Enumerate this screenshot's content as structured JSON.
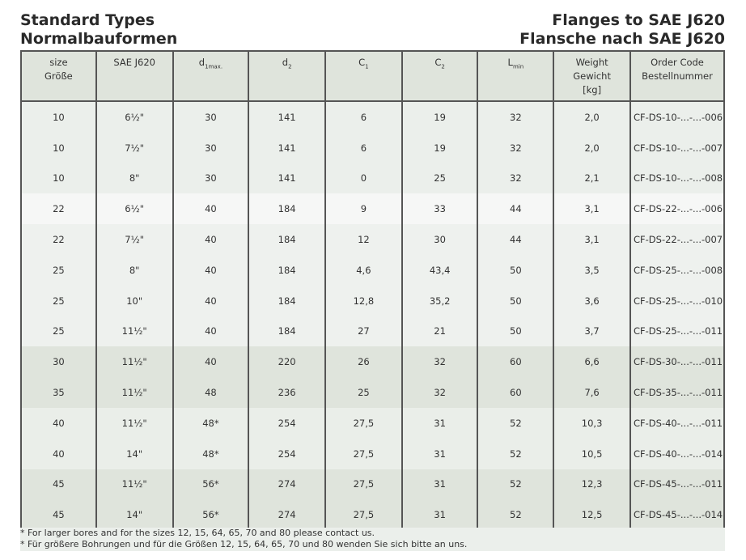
{
  "title_left": [
    "Standard Types",
    "Normalbauformen"
  ],
  "title_right": [
    "Flanges to SAE J620",
    "Flansche nach SAE J620"
  ],
  "headers": {
    "size": [
      "size",
      "Größe"
    ],
    "sae": "SAE J620",
    "d1": {
      "main": "d",
      "sub": "1max."
    },
    "d2": {
      "main": "d",
      "sub": "2"
    },
    "c1": {
      "main": "C",
      "sub": "1"
    },
    "c2": {
      "main": "C",
      "sub": "2"
    },
    "lmin": {
      "main": "L",
      "sub": "min"
    },
    "weight": [
      "Weight",
      "Gewicht",
      "[kg]"
    ],
    "order": [
      "Order Code",
      "Bestellnummer"
    ]
  },
  "rows": [
    [
      "10",
      "6½\"",
      "30",
      "141",
      "6",
      "19",
      "32",
      "2,0",
      "CF-DS-10-...-...-006"
    ],
    [
      "10",
      "7½\"",
      "30",
      "141",
      "6",
      "19",
      "32",
      "2,0",
      "CF-DS-10-...-...-007"
    ],
    [
      "10",
      "8\"",
      "30",
      "141",
      "0",
      "25",
      "32",
      "2,1",
      "CF-DS-10-...-...-008"
    ],
    [
      "22",
      "6½\"",
      "40",
      "184",
      "9",
      "33",
      "44",
      "3,1",
      "CF-DS-22-...-...-006"
    ],
    [
      "22",
      "7½\"",
      "40",
      "184",
      "12",
      "30",
      "44",
      "3,1",
      "CF-DS-22-...-...-007"
    ],
    [
      "25",
      "8\"",
      "40",
      "184",
      "4,6",
      "43,4",
      "50",
      "3,5",
      "CF-DS-25-...-...-008"
    ],
    [
      "25",
      "10\"",
      "40",
      "184",
      "12,8",
      "35,2",
      "50",
      "3,6",
      "CF-DS-25-...-...-010"
    ],
    [
      "25",
      "11½\"",
      "40",
      "184",
      "27",
      "21",
      "50",
      "3,7",
      "CF-DS-25-...-...-011"
    ],
    [
      "30",
      "11½\"",
      "40",
      "220",
      "26",
      "32",
      "60",
      "6,6",
      "CF-DS-30-...-...-011"
    ],
    [
      "35",
      "11½\"",
      "48",
      "236",
      "25",
      "32",
      "60",
      "7,6",
      "CF-DS-35-...-...-011"
    ],
    [
      "40",
      "11½\"",
      "48*",
      "254",
      "27,5",
      "31",
      "52",
      "10,3",
      "CF-DS-40-...-...-011"
    ],
    [
      "40",
      "14\"",
      "48*",
      "254",
      "27,5",
      "31",
      "52",
      "10,5",
      "CF-DS-40-...-...-014"
    ],
    [
      "45",
      "11½\"",
      "56*",
      "274",
      "27,5",
      "31",
      "52",
      "12,3",
      "CF-DS-45-...-...-011"
    ],
    [
      "45",
      "14\"",
      "56*",
      "274",
      "27,5",
      "31",
      "52",
      "12,5",
      "CF-DS-45-...-...-014"
    ]
  ],
  "footnotes": [
    "* For larger bores and for the sizes 12, 15, 64, 65, 70 and 80 please contact us.",
    "* Für größere Bohrungen und für die Größen 12, 15, 64, 65, 70 und 80 wenden Sie sich bitte an uns."
  ]
}
